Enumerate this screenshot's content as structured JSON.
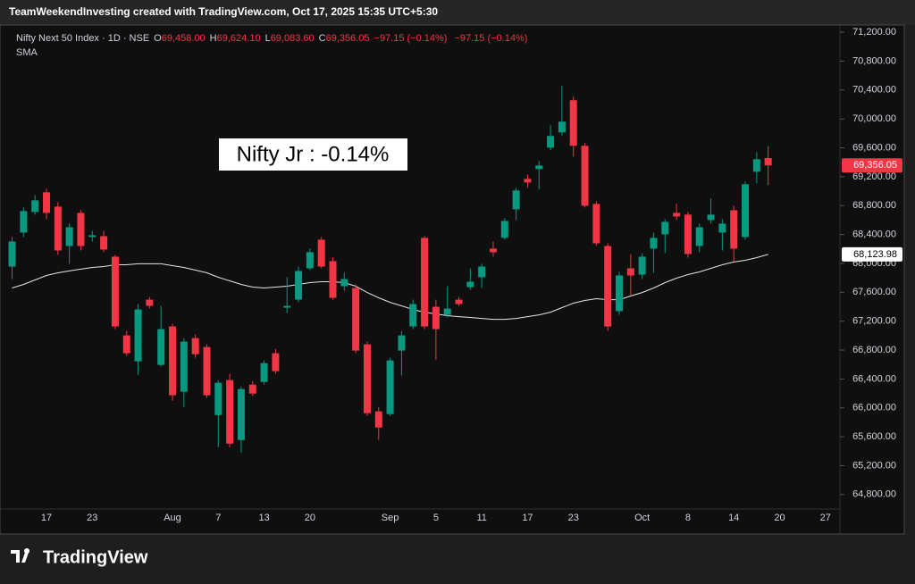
{
  "header": "TeamWeekendInvesting created with TradingView.com, Oct 17, 2025 15:35 UTC+5:30",
  "footer": "TradingView",
  "chart_data": {
    "type": "candlestick",
    "symbol": "Nifty Next 50 Index · 1D · NSE",
    "legend": {
      "o": "O",
      "open": "69,458.00",
      "h": "H",
      "high": "69,624.10",
      "l": "L",
      "low": "69,083.60",
      "c": "C",
      "close": "69,356.05",
      "change": "−97.15 (−0.14%)",
      "change2": "−97.15 (−0.14%)"
    },
    "annotation": "Nifty Jr : -0.14%",
    "up_color": "#089981",
    "down_color": "#f23645",
    "categories": [
      null,
      null,
      null,
      "17",
      null,
      null,
      null,
      "23",
      null,
      null,
      null,
      null,
      null,
      null,
      "Aug",
      null,
      null,
      null,
      "7",
      null,
      null,
      null,
      "13",
      null,
      null,
      null,
      "20",
      null,
      null,
      null,
      null,
      null,
      null,
      "Sep",
      null,
      null,
      null,
      "5",
      null,
      null,
      null,
      "11",
      null,
      null,
      null,
      "17",
      null,
      null,
      null,
      "23",
      null,
      null,
      null,
      null,
      null,
      "Oct",
      null,
      null,
      null,
      "8",
      null,
      null,
      null,
      "14",
      null,
      null,
      null,
      "20",
      null,
      null,
      null,
      "27"
    ],
    "open": [
      67956,
      68427,
      68712,
      68984,
      68786,
      68241,
      68699,
      68365,
      68377,
      68093,
      67003,
      66644,
      67498,
      66595,
      67127,
      66223,
      66966,
      66842,
      65901,
      66384,
      65555,
      66322,
      66359,
      66756,
      67387,
      67498,
      67932,
      68328,
      68031,
      67684,
      67659,
      66879,
      65951,
      65914,
      66793,
      67127,
      68353,
      67399,
      67288,
      67498,
      67672,
      67808,
      68204,
      68353,
      68749,
      69170,
      69306,
      69603,
      69813,
      70259,
      69628,
      68823,
      68241,
      67338,
      67932,
      67845,
      68204,
      68402,
      68699,
      68675,
      68241,
      68600,
      68427,
      68736,
      68365,
      69269,
      69458,
      null,
      null,
      null,
      null,
      null
    ],
    "high": [
      68365,
      68774,
      68947,
      69034,
      68848,
      68551,
      68736,
      68452,
      68452,
      68117,
      67065,
      67437,
      67536,
      67412,
      67164,
      66966,
      67016,
      66879,
      66384,
      66471,
      66297,
      66372,
      66657,
      66817,
      67808,
      67956,
      68204,
      68365,
      68080,
      67870,
      67709,
      66917,
      66013,
      66694,
      67065,
      67498,
      68377,
      67498,
      67684,
      67536,
      67932,
      67994,
      68303,
      68625,
      69046,
      69232,
      69417,
      69912,
      70457,
      70309,
      69665,
      68860,
      68278,
      67882,
      68130,
      68142,
      68427,
      68613,
      68823,
      68712,
      68551,
      68897,
      68613,
      68798,
      69133,
      69541,
      69624.1,
      null,
      null,
      null,
      null,
      null
    ],
    "low": [
      67783,
      68365,
      68675,
      68613,
      68117,
      67994,
      68179,
      68303,
      68155,
      67090,
      66719,
      66458,
      67375,
      66570,
      66099,
      66013,
      66694,
      66137,
      65456,
      65456,
      65381,
      66161,
      66322,
      66471,
      67313,
      67461,
      67907,
      67932,
      67498,
      67622,
      66756,
      65889,
      65555,
      65889,
      66446,
      67090,
      67090,
      66669,
      67251,
      67412,
      67634,
      67659,
      68093,
      68328,
      68600,
      69046,
      69021,
      69566,
      69764,
      69479,
      68774,
      68241,
      67065,
      67288,
      67560,
      67783,
      67870,
      68142,
      68600,
      68080,
      68155,
      68551,
      68179,
      68031,
      68328,
      69108,
      69083.6,
      null,
      null,
      null,
      null,
      null
    ],
    "close": [
      68303,
      68724,
      68873,
      68699,
      68179,
      68501,
      68241,
      68390,
      68192,
      67127,
      66756,
      67362,
      67412,
      67090,
      66174,
      66917,
      66743,
      66174,
      66347,
      65505,
      66260,
      66198,
      66619,
      66508,
      67412,
      67895,
      68155,
      67956,
      67523,
      67783,
      66793,
      65926,
      65728,
      66657,
      67003,
      67437,
      67127,
      67090,
      67375,
      67437,
      67746,
      67956,
      68155,
      68588,
      69009,
      69120,
      69355,
      69764,
      69962,
      69628,
      68798,
      68278,
      67127,
      67833,
      67833,
      68093,
      68353,
      68575,
      68650,
      68130,
      68501,
      68675,
      68551,
      68204,
      69096,
      69442,
      69356.05,
      null,
      null,
      null,
      null,
      null
    ],
    "close_label": "69,356.05",
    "sma": {
      "name": "SMA",
      "color": "#e6e6e6",
      "last_label": "68,123.98",
      "values": [
        67660,
        67709,
        67771,
        67833,
        67870,
        67895,
        67920,
        67944,
        67956,
        67981,
        67981,
        67994,
        67994,
        67994,
        67969,
        67944,
        67907,
        67870,
        67808,
        67758,
        67709,
        67672,
        67660,
        67672,
        67684,
        67709,
        67734,
        67746,
        67746,
        67734,
        67684,
        67597,
        67523,
        67461,
        67412,
        67362,
        67325,
        67300,
        67276,
        67263,
        67251,
        67238,
        67226,
        67226,
        67238,
        67263,
        67288,
        67325,
        67387,
        67449,
        67486,
        67511,
        67498,
        67498,
        67548,
        67597,
        67660,
        67734,
        67796,
        67845,
        67882,
        67932,
        67981,
        68019,
        68043,
        68080,
        68123.98,
        null,
        null,
        null,
        null,
        null
      ]
    },
    "ylim": [
      64600,
      71300
    ],
    "yticks": [
      {
        "value": 64800,
        "label": "64,800.00"
      },
      {
        "value": 65200,
        "label": "65,200.00"
      },
      {
        "value": 65600,
        "label": "65,600.00"
      },
      {
        "value": 66000,
        "label": "66,000.00"
      },
      {
        "value": 66400,
        "label": "66,400.00"
      },
      {
        "value": 66800,
        "label": "66,800.00"
      },
      {
        "value": 67200,
        "label": "67,200.00"
      },
      {
        "value": 67600,
        "label": "67,600.00"
      },
      {
        "value": 68000,
        "label": "68,000.00"
      },
      {
        "value": 68400,
        "label": "68,400.00"
      },
      {
        "value": 68800,
        "label": "68,800.00"
      },
      {
        "value": 69200,
        "label": "69,200.00"
      },
      {
        "value": 69600,
        "label": "69,600.00"
      },
      {
        "value": 70000,
        "label": "70,000.00"
      },
      {
        "value": 70400,
        "label": "70,400.00"
      },
      {
        "value": 70800,
        "label": "70,800.00"
      },
      {
        "value": 71200,
        "label": "71,200.00"
      }
    ]
  }
}
